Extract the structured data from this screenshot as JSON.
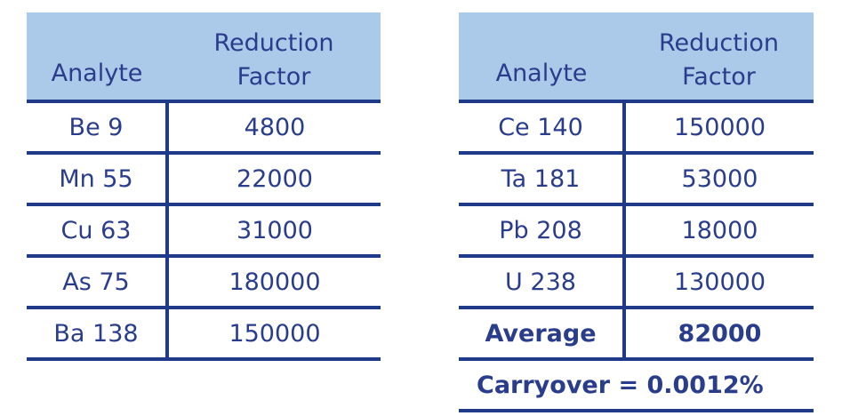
{
  "left_table": {
    "headers": [
      "Analyte",
      "Reduction",
      "Factor"
    ],
    "rows": [
      [
        "Be 9",
        "4800"
      ],
      [
        "Mn 55",
        "22000"
      ],
      [
        "Cu 63",
        "31000"
      ],
      [
        "As 75",
        "180000"
      ],
      [
        "Ba 138",
        "150000"
      ]
    ]
  },
  "right_table": {
    "headers": [
      "Analyte",
      "Reduction",
      "Factor"
    ],
    "rows": [
      [
        "Ce 140",
        "150000"
      ],
      [
        "Ta 181",
        "53000"
      ],
      [
        "Pb 208",
        "18000"
      ],
      [
        "U 238",
        "130000"
      ]
    ],
    "average_label": "Average",
    "average_value": "82000",
    "carryover": "Carryover = 0.0012%"
  },
  "colors": {
    "header_bg": "#abc9e8",
    "text": "#2a3d8c",
    "rule": "#1f3a88"
  }
}
